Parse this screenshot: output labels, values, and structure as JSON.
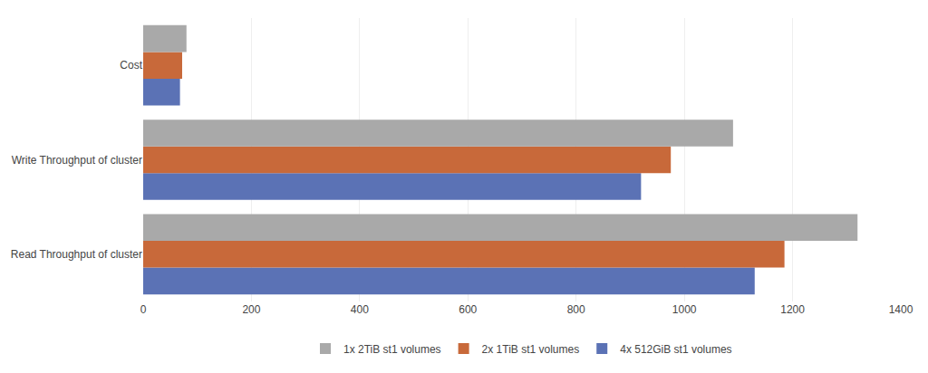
{
  "chart_data": {
    "type": "bar",
    "orientation": "horizontal",
    "categories": [
      "Read Throughput of cluster",
      "Write Throughput of cluster",
      "Cost"
    ],
    "series": [
      {
        "name": "1x 2TiB st1 volumes",
        "color": "#a9a9a9",
        "values": [
          1320,
          1090,
          80
        ]
      },
      {
        "name": "2x 1TiB st1 volumes",
        "color": "#c8693a",
        "values": [
          1185,
          975,
          72
        ]
      },
      {
        "name": "4x 512GiB st1 volumes",
        "color": "#5b72b5",
        "values": [
          1130,
          920,
          68
        ]
      }
    ],
    "xlim": [
      0,
      1400
    ],
    "xticks": [
      0,
      200,
      400,
      600,
      800,
      1000,
      1200,
      1400
    ],
    "grid": true,
    "legend": "bottom"
  }
}
